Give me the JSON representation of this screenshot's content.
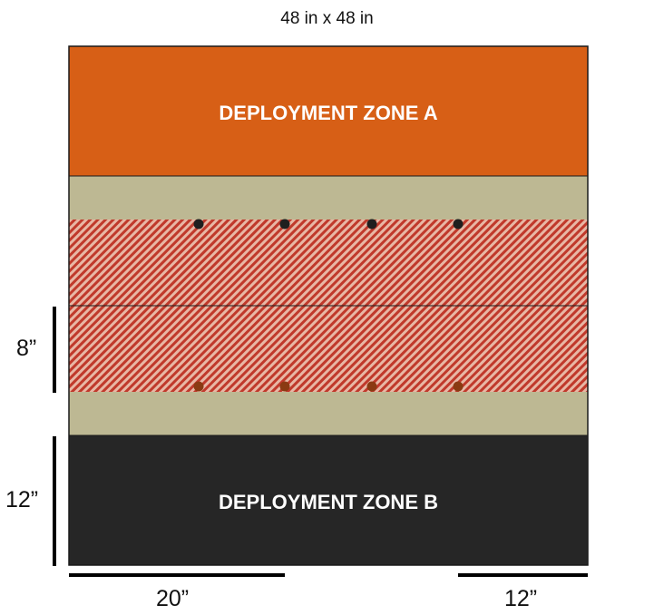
{
  "title": "48 in x 48 in",
  "zones": {
    "a": {
      "label": "DEPLOYMENT ZONE A",
      "color": "#D75F16"
    },
    "b": {
      "label": "DEPLOYMENT ZONE B",
      "color": "#262626"
    }
  },
  "colors": {
    "midfield": "#BDB893",
    "hatch_red": "#C0392B",
    "hatch_light": "#E8B7A5",
    "markers_top": "#1F1F1F",
    "markers_bottom": "#8A3A12",
    "outline": "#1A1A1A"
  },
  "measurements": {
    "left_top": "8”",
    "left_bottom": "12”",
    "bottom_left": "20”",
    "bottom_right": "12”"
  }
}
